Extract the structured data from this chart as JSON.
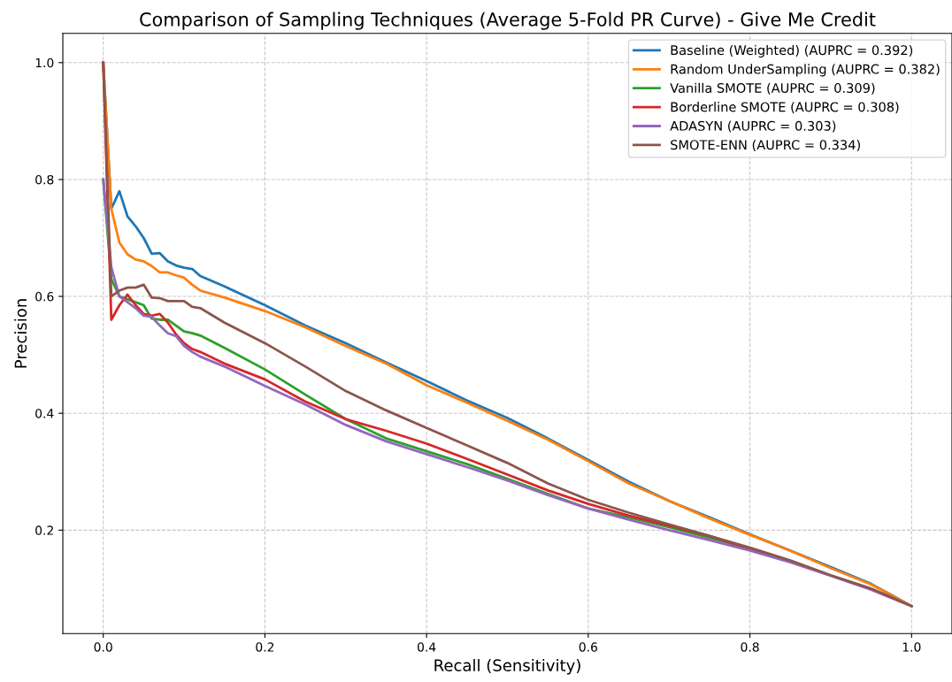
{
  "chart_data": {
    "type": "line",
    "title": "Comparison of Sampling Techniques (Average 5-Fold PR Curve) - Give Me Credit",
    "xlabel": "Recall (Sensitivity)",
    "ylabel": "Precision",
    "x": [
      0,
      0.01,
      0.02,
      0.03,
      0.04,
      0.05,
      0.06,
      0.07,
      0.08,
      0.09,
      0.1,
      0.11,
      0.12,
      0.15,
      0.2,
      0.25,
      0.3,
      0.35,
      0.4,
      0.45,
      0.5,
      0.55,
      0.6,
      0.65,
      0.7,
      0.75,
      0.8,
      0.85,
      0.9,
      0.95,
      1.0
    ],
    "series": [
      {
        "name": "Baseline (Weighted) (AUPRC = 0.392)",
        "color": "#1f77b4",
        "values": [
          1.0,
          0.75,
          0.78,
          0.737,
          0.72,
          0.7,
          0.673,
          0.674,
          0.66,
          0.653,
          0.649,
          0.647,
          0.635,
          0.617,
          0.585,
          0.55,
          0.52,
          0.487,
          0.455,
          0.422,
          0.392,
          0.357,
          0.32,
          0.283,
          0.25,
          0.222,
          0.193,
          0.165,
          0.137,
          0.108,
          0.07
        ]
      },
      {
        "name": "Random UnderSampling (AUPRC = 0.382)",
        "color": "#ff7f0e",
        "values": [
          1.0,
          0.75,
          0.692,
          0.672,
          0.663,
          0.66,
          0.652,
          0.641,
          0.641,
          0.636,
          0.632,
          0.62,
          0.61,
          0.598,
          0.575,
          0.547,
          0.515,
          0.485,
          0.448,
          0.418,
          0.387,
          0.355,
          0.318,
          0.28,
          0.25,
          0.22,
          0.192,
          0.165,
          0.135,
          0.107,
          0.07
        ]
      },
      {
        "name": "Vanilla SMOTE (AUPRC = 0.309)",
        "color": "#2ca02c",
        "values": [
          0.8,
          0.63,
          0.6,
          0.595,
          0.59,
          0.585,
          0.562,
          0.56,
          0.56,
          0.55,
          0.54,
          0.537,
          0.533,
          0.512,
          0.475,
          0.432,
          0.39,
          0.357,
          0.335,
          0.313,
          0.288,
          0.262,
          0.237,
          0.222,
          0.205,
          0.187,
          0.168,
          null,
          null,
          null,
          null
        ]
      },
      {
        "name": "Borderline SMOTE (AUPRC = 0.308)",
        "color": "#d62728",
        "values": [
          1.0,
          0.56,
          0.585,
          0.603,
          0.585,
          0.57,
          0.567,
          0.57,
          0.555,
          0.535,
          0.52,
          0.51,
          0.505,
          0.485,
          0.458,
          0.42,
          0.39,
          0.37,
          0.348,
          0.322,
          0.295,
          0.268,
          0.245,
          0.225,
          0.208,
          0.19,
          0.168,
          0.147,
          null,
          null,
          null
        ]
      },
      {
        "name": "ADASYN (AUPRC = 0.303)",
        "color": "#9467bd",
        "values": [
          0.8,
          0.65,
          0.6,
          0.59,
          0.58,
          0.567,
          0.565,
          0.55,
          0.537,
          0.532,
          0.515,
          0.505,
          0.497,
          0.48,
          0.447,
          0.415,
          0.38,
          0.352,
          0.33,
          0.308,
          0.285,
          0.26,
          0.237,
          0.218,
          0.2,
          0.183,
          0.165,
          0.145,
          0.122,
          0.098,
          0.07
        ]
      },
      {
        "name": "SMOTE-ENN (AUPRC = 0.334)",
        "color": "#8c564b",
        "values": [
          1.0,
          0.6,
          0.61,
          0.615,
          0.615,
          0.62,
          0.598,
          0.597,
          0.592,
          0.592,
          0.592,
          0.582,
          0.58,
          0.555,
          0.52,
          0.48,
          0.438,
          0.405,
          0.375,
          0.345,
          0.315,
          0.28,
          0.252,
          0.23,
          0.21,
          0.19,
          0.17,
          0.148,
          0.123,
          0.1,
          0.07
        ]
      }
    ],
    "xlim": [
      -0.05,
      1.05
    ],
    "ylim": [
      0.023,
      1.05
    ],
    "xticks": [
      {
        "value": 0,
        "label": "0.0"
      },
      {
        "value": 0.2,
        "label": "0.2"
      },
      {
        "value": 0.4,
        "label": "0.4"
      },
      {
        "value": 0.6,
        "label": "0.6"
      },
      {
        "value": 0.8,
        "label": "0.8"
      },
      {
        "value": 1.0,
        "label": "1.0"
      }
    ],
    "yticks": [
      {
        "value": 0.2,
        "label": "0.2"
      },
      {
        "value": 0.4,
        "label": "0.4"
      },
      {
        "value": 0.6,
        "label": "0.6"
      },
      {
        "value": 0.8,
        "label": "0.8"
      },
      {
        "value": 1.0,
        "label": "1.0"
      }
    ],
    "grid": true,
    "legend": "top right",
    "line_style": "solid",
    "marker": "none"
  }
}
